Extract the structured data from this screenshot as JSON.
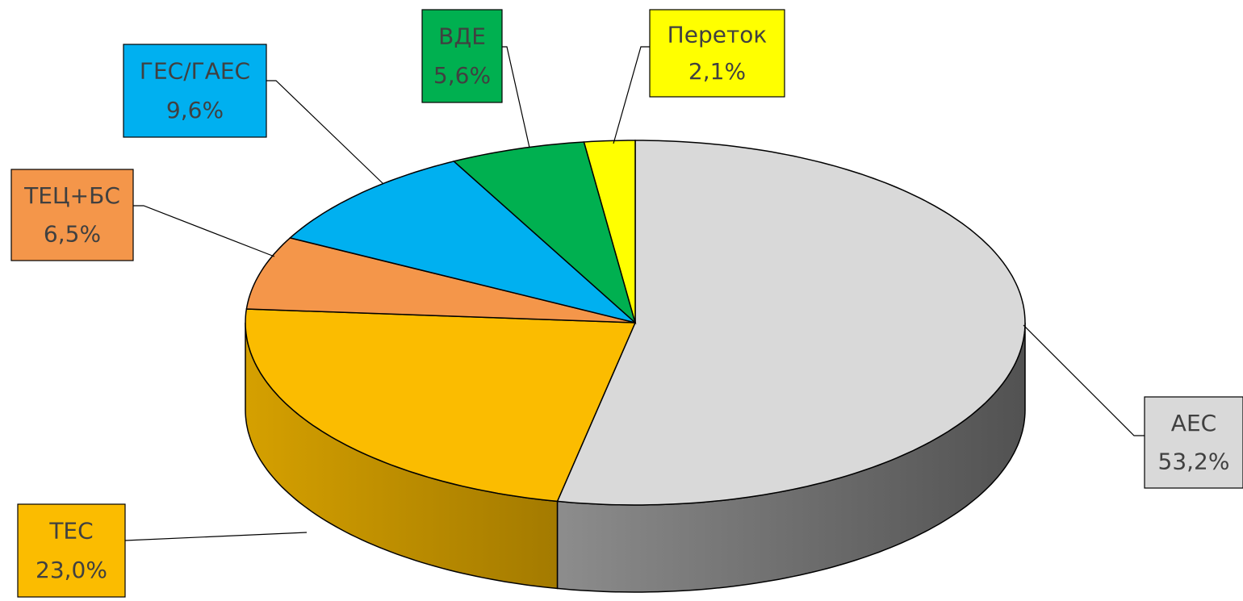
{
  "chart_data": {
    "type": "pie",
    "categories": [
      "АЕС",
      "ТЕС",
      "ТЕЦ+БС",
      "ГЕС/ГАЕС",
      "ВДЕ",
      "Переток"
    ],
    "values": [
      53.2,
      23.0,
      6.5,
      9.6,
      5.6,
      2.1
    ],
    "value_labels": [
      "53,2%",
      "23,0%",
      "6,5%",
      "9,6%",
      "5,6%",
      "2,1%"
    ],
    "colors": [
      "#d9d9d9",
      "#fbbc00",
      "#f4964a",
      "#00b0f0",
      "#00b050",
      "#ffff00"
    ]
  }
}
